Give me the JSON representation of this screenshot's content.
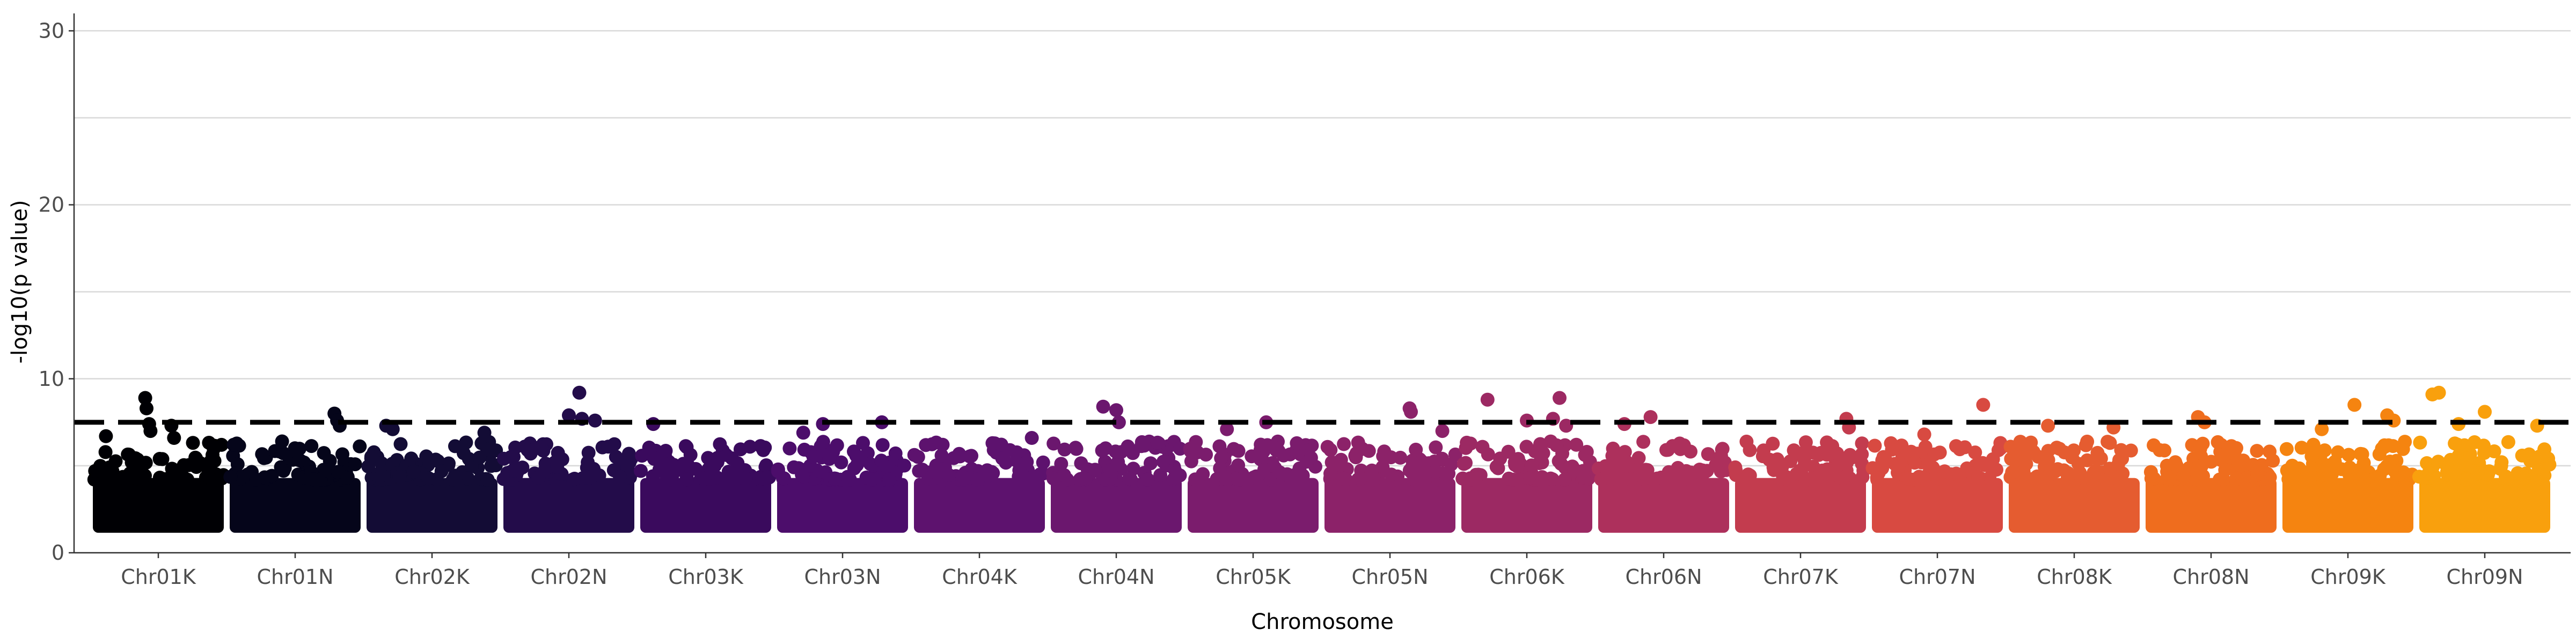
{
  "chart_data": {
    "type": "scatter",
    "title": "",
    "xlabel": "Chromosome",
    "ylabel": "-log10(p value)",
    "ylim": [
      0,
      31
    ],
    "yticks": [
      0,
      10,
      20,
      30
    ],
    "grid": {
      "horizontal": true,
      "vertical": false
    },
    "legend": "none",
    "threshold": 7.5,
    "categories": [
      "Chr01K",
      "Chr01N",
      "Chr02K",
      "Chr02N",
      "Chr03K",
      "Chr03N",
      "Chr04K",
      "Chr04N",
      "Chr05K",
      "Chr05N",
      "Chr06K",
      "Chr06N",
      "Chr07K",
      "Chr07N",
      "Chr08K",
      "Chr08N",
      "Chr09K",
      "Chr09N"
    ],
    "series": [
      {
        "category": "Chr01K",
        "color": "#000004",
        "points": [
          [
            0.1,
            6.7
          ],
          [
            0.4,
            8.9
          ],
          [
            0.41,
            8.3
          ],
          [
            0.43,
            7.4
          ],
          [
            0.44,
            7.0
          ],
          [
            0.6,
            7.3
          ],
          [
            0.62,
            6.6
          ]
        ]
      },
      {
        "category": "Chr01N",
        "color": "#05051a",
        "points": [
          [
            0.4,
            6.4
          ],
          [
            0.8,
            8.0
          ],
          [
            0.82,
            7.6
          ],
          [
            0.84,
            7.3
          ]
        ]
      },
      {
        "category": "Chr02K",
        "color": "#130c35",
        "points": [
          [
            0.15,
            7.3
          ],
          [
            0.2,
            7.1
          ],
          [
            0.9,
            6.9
          ]
        ]
      },
      {
        "category": "Chr02N",
        "color": "#230c4a",
        "points": [
          [
            0.5,
            7.9
          ],
          [
            0.58,
            9.2
          ],
          [
            0.6,
            7.7
          ],
          [
            0.7,
            7.6
          ]
        ]
      },
      {
        "category": "Chr03K",
        "color": "#3a0a5d",
        "points": [
          [
            0.1,
            7.4
          ]
        ]
      },
      {
        "category": "Chr03N",
        "color": "#4c0d6b",
        "points": [
          [
            0.2,
            6.9
          ],
          [
            0.35,
            7.4
          ],
          [
            0.8,
            7.5
          ]
        ]
      },
      {
        "category": "Chr04K",
        "color": "#5d126e",
        "points": [
          [
            0.6,
            6.3
          ],
          [
            0.9,
            6.6
          ]
        ]
      },
      {
        "category": "Chr04N",
        "color": "#6b176e",
        "points": [
          [
            0.4,
            8.4
          ],
          [
            0.5,
            8.2
          ],
          [
            0.52,
            7.5
          ]
        ]
      },
      {
        "category": "Chr05K",
        "color": "#7b1c6d",
        "points": [
          [
            0.3,
            7.1
          ],
          [
            0.6,
            7.5
          ]
        ]
      },
      {
        "category": "Chr05N",
        "color": "#8c2269",
        "points": [
          [
            0.65,
            8.3
          ],
          [
            0.66,
            8.1
          ],
          [
            0.9,
            7.0
          ]
        ]
      },
      {
        "category": "Chr06K",
        "color": "#9c2963",
        "points": [
          [
            0.2,
            8.8
          ],
          [
            0.5,
            7.6
          ],
          [
            0.7,
            7.7
          ],
          [
            0.75,
            8.9
          ],
          [
            0.8,
            7.3
          ]
        ]
      },
      {
        "category": "Chr06N",
        "color": "#ad305c",
        "points": [
          [
            0.2,
            7.4
          ],
          [
            0.4,
            7.8
          ]
        ]
      },
      {
        "category": "Chr07K",
        "color": "#c33c4e",
        "points": [
          [
            0.85,
            7.7
          ],
          [
            0.87,
            7.2
          ]
        ]
      },
      {
        "category": "Chr07N",
        "color": "#d84a41",
        "points": [
          [
            0.4,
            6.8
          ],
          [
            0.85,
            8.5
          ]
        ]
      },
      {
        "category": "Chr08K",
        "color": "#e55c30",
        "points": [
          [
            0.3,
            7.3
          ],
          [
            0.8,
            7.2
          ]
        ]
      },
      {
        "category": "Chr08N",
        "color": "#ef6d1e",
        "points": [
          [
            0.4,
            7.8
          ],
          [
            0.45,
            7.5
          ]
        ]
      },
      {
        "category": "Chr09K",
        "color": "#f58410",
        "points": [
          [
            0.3,
            7.1
          ],
          [
            0.55,
            8.5
          ],
          [
            0.8,
            7.9
          ],
          [
            0.85,
            7.6
          ]
        ]
      },
      {
        "category": "Chr09N",
        "color": "#f9a00d",
        "points": [
          [
            0.1,
            9.1
          ],
          [
            0.15,
            9.2
          ],
          [
            0.3,
            7.4
          ],
          [
            0.5,
            8.1
          ],
          [
            0.9,
            7.3
          ]
        ]
      }
    ]
  }
}
